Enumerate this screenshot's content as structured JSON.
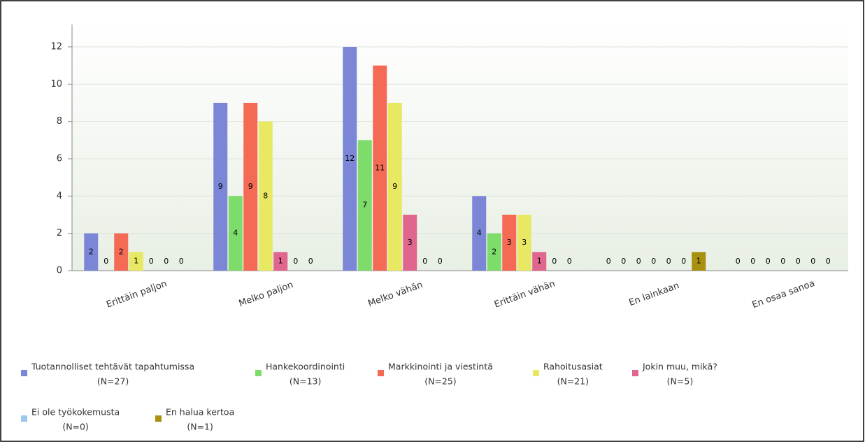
{
  "chart_data": {
    "type": "bar",
    "categories": [
      "Erittäin paljon",
      "Melko paljon",
      "Melko vähän",
      "Erittäin vähän",
      "En lainkaan",
      "En osaa sanoa"
    ],
    "series": [
      {
        "name": "Tuotannolliset tehtävät tapahtumissa",
        "n_label": "(N=27)",
        "color": "#7b86d6",
        "values": [
          2,
          9,
          12,
          4,
          0,
          0
        ]
      },
      {
        "name": "Hankekoordinointi",
        "n_label": "(N=13)",
        "color": "#7ddc6a",
        "values": [
          0,
          4,
          7,
          2,
          0,
          0
        ]
      },
      {
        "name": "Markkinointi ja viestintä",
        "n_label": "(N=25)",
        "color": "#f46a55",
        "values": [
          2,
          9,
          11,
          3,
          0,
          0
        ]
      },
      {
        "name": "Rahoitusasiat",
        "n_label": "(N=21)",
        "color": "#e8e862",
        "values": [
          1,
          8,
          9,
          3,
          0,
          0
        ]
      },
      {
        "name": "Jokin muu, mikä?",
        "n_label": "(N=5)",
        "color": "#e0668f",
        "values": [
          0,
          1,
          3,
          1,
          0,
          0
        ]
      },
      {
        "name": "Ei ole työkokemusta",
        "n_label": "(N=0)",
        "color": "#9cc8ee",
        "values": [
          0,
          0,
          0,
          0,
          0,
          0
        ]
      },
      {
        "name": "En halua kertoa",
        "n_label": "(N=1)",
        "color": "#a89010",
        "values": [
          0,
          0,
          0,
          0,
          1,
          0
        ]
      }
    ],
    "ylim": [
      0,
      13.2
    ],
    "yticks": [
      0,
      2,
      4,
      6,
      8,
      10,
      12
    ],
    "grid": true,
    "legend": "bottom"
  }
}
